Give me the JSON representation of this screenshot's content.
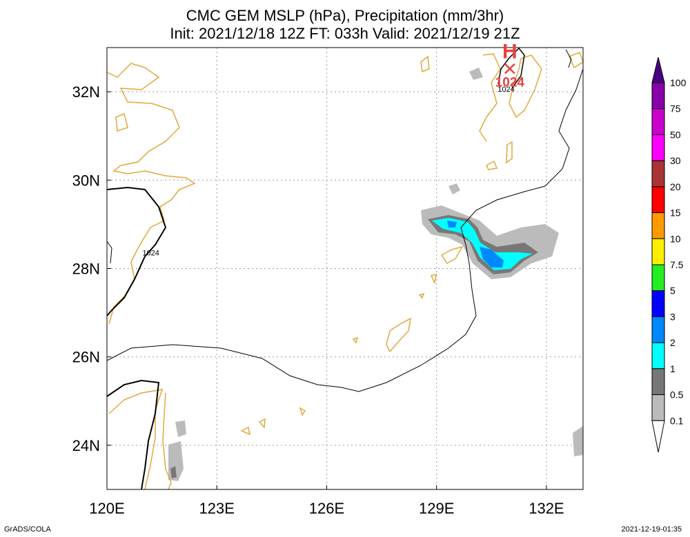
{
  "title_line1": "CMC GEM MSLP (hPa), Precipitation (mm/3hr)",
  "title_line2": "Init: 2021/12/18 12Z  FT: 033h  Valid: 2021/12/19 21Z",
  "footer_left": "GrADS/COLA",
  "footer_right": "2021-12-19-01:35",
  "colors": {
    "coast": "#e0a83a",
    "isobar": "#000000",
    "high": "#e84040",
    "grid": "#999999"
  },
  "chart_data": {
    "type": "map",
    "x_ticks": [
      "120E",
      "123E",
      "126E",
      "129E",
      "132E"
    ],
    "y_ticks": [
      "24N",
      "26N",
      "28N",
      "30N",
      "32N"
    ],
    "lon_range": [
      120,
      133
    ],
    "lat_range": [
      23,
      33
    ],
    "grid": "dotted",
    "pressure_centers": [
      {
        "type": "H",
        "value": "1024",
        "lon": 131.0,
        "lat": 32.6
      }
    ],
    "isobar_labels": [
      {
        "text": "1024",
        "lon": 121.2,
        "lat": 28.3
      },
      {
        "text": "1024",
        "lon": 130.9,
        "lat": 32.0
      }
    ],
    "colorbar": {
      "levels": [
        "100",
        "75",
        "50",
        "30",
        "20",
        "15",
        "10",
        "7.5",
        "5",
        "3",
        "2",
        "1",
        "0.5",
        "0.1"
      ],
      "colors": [
        "#8800aa",
        "#cc00cc",
        "#ff00ff",
        "#aa3333",
        "#ff0000",
        "#ff9900",
        "#ffee00",
        "#22ee22",
        "#0000ff",
        "#0088ff",
        "#00ffff",
        "#777777",
        "#bbbbbb",
        "#ffffff"
      ],
      "top_color": "#4b0082"
    }
  }
}
